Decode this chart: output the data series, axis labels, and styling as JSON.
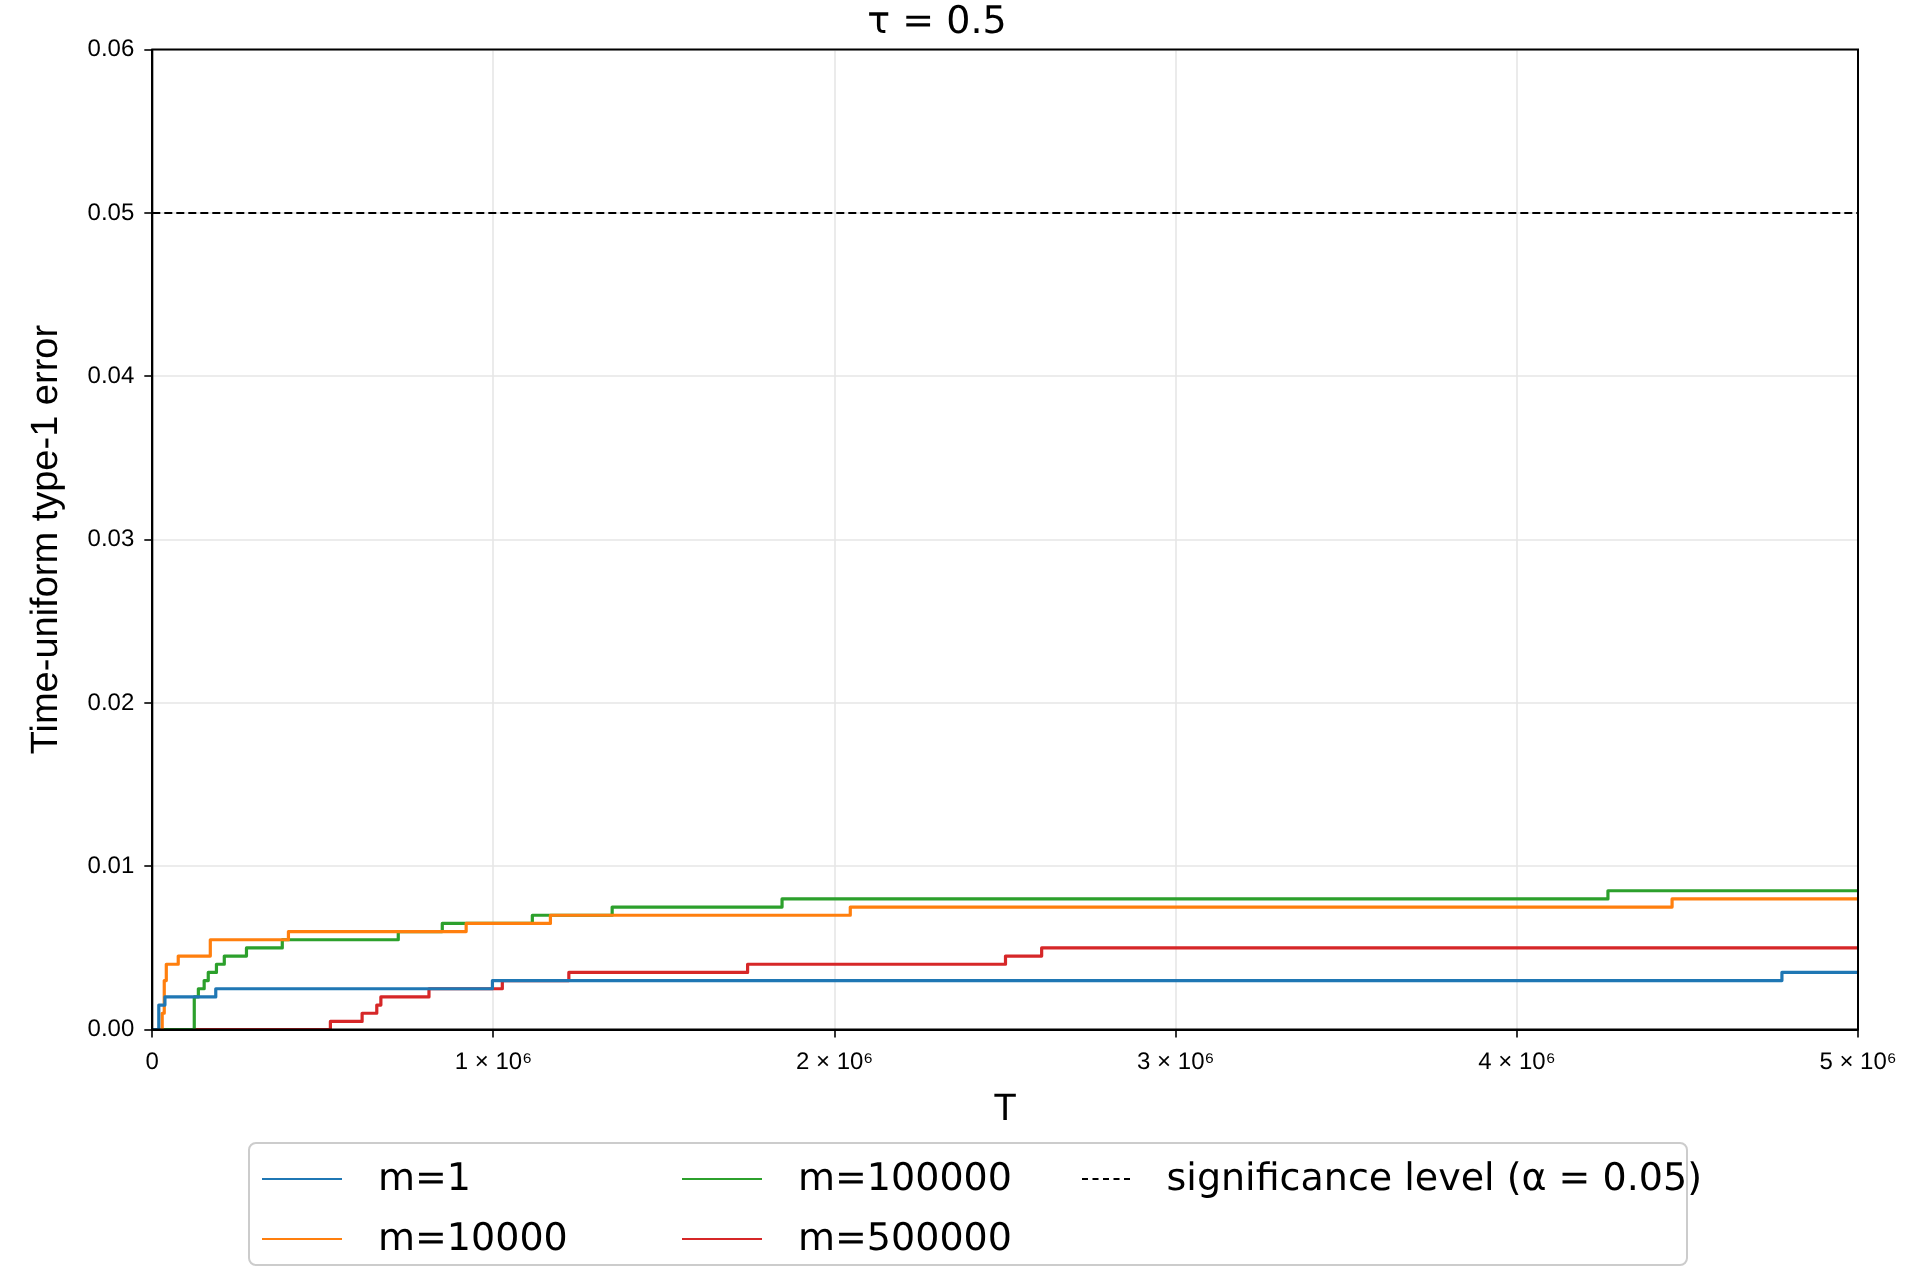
{
  "chart_data": {
    "type": "step",
    "title": "τ = 0.5",
    "xlabel": "T",
    "ylabel": "Time-uniform type-1 error",
    "xlim": [
      0,
      5000000
    ],
    "xticks": [
      0,
      {
        "value": 1000000,
        "label": "1 × 10⁶"
      },
      {
        "value": 2000000,
        "label": "2 × 10⁶"
      },
      {
        "value": 3000000,
        "label": "3 × 10⁶"
      },
      {
        "value": 4000000,
        "label": "4 × 10⁶"
      },
      {
        "value": 5000000,
        "label": "5 × 10⁶"
      }
    ],
    "ylim": [
      0,
      0.06
    ],
    "yticks": [
      {
        "value": 0,
        "label": "0.00"
      },
      {
        "value": 0.01,
        "label": "0.01"
      },
      {
        "value": 0.02,
        "label": "0.02"
      },
      {
        "value": 0.03,
        "label": "0.03"
      },
      {
        "value": 0.04,
        "label": "0.04"
      },
      {
        "value": 0.05,
        "label": "0.05"
      },
      {
        "value": 0.06,
        "label": "0.06"
      }
    ],
    "grid": true,
    "legend": "bottom",
    "marker": "none",
    "line_style": "solid",
    "series": [
      {
        "name": "m=1",
        "color": "#1f77b4",
        "x": [
          0,
          19000,
          37000,
          186000,
          997000,
          4777000,
          5000000
        ],
        "values": [
          0,
          0.0015,
          0.002,
          0.0025,
          0.003,
          0.0035,
          0.0035
        ]
      },
      {
        "name": "m=10000",
        "color": "#ff7f0e",
        "x": [
          0,
          29000,
          35000,
          41000,
          76000,
          170000,
          399000,
          920000,
          1167000,
          2046000,
          4455000,
          5000000
        ],
        "values": [
          0,
          0.001,
          0.003,
          0.004,
          0.0045,
          0.0055,
          0.006,
          0.0065,
          0.007,
          0.0075,
          0.008,
          0.008
        ]
      },
      {
        "name": "m=100000",
        "color": "#2ca02c",
        "x": [
          0,
          123000,
          135000,
          152000,
          164000,
          188000,
          211000,
          276000,
          381000,
          721000,
          850000,
          1114000,
          1348000,
          1846000,
          4267000,
          5000000
        ],
        "values": [
          0,
          0.002,
          0.0025,
          0.003,
          0.0035,
          0.004,
          0.0045,
          0.005,
          0.0055,
          0.006,
          0.0065,
          0.007,
          0.0075,
          0.008,
          0.0085,
          0.0085
        ]
      },
      {
        "name": "m=500000",
        "color": "#d62728",
        "x": [
          0,
          522000,
          615000,
          658000,
          670000,
          811000,
          1026000,
          1221000,
          1745000,
          2501000,
          2607000,
          5000000
        ],
        "values": [
          0,
          0.0005,
          0.001,
          0.0015,
          0.002,
          0.0025,
          0.003,
          0.0035,
          0.004,
          0.0045,
          0.005,
          0.005
        ]
      }
    ],
    "ref_lines": [
      {
        "axis": "y",
        "value": 0.05,
        "label": "significance level (α = 0.05)",
        "color": "#000000",
        "line_style": "dashed"
      }
    ]
  }
}
